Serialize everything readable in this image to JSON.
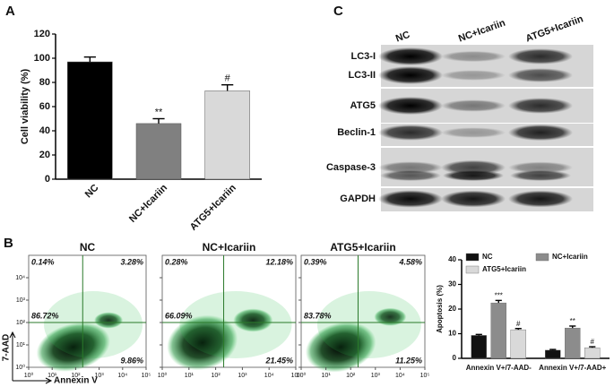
{
  "panel_labels": [
    "A",
    "B",
    "C"
  ],
  "chart_data": [
    {
      "type": "bar",
      "ylabel": "Cell viability (%)",
      "categories": [
        "NC",
        "NC+Icariin",
        "ATG5+Icariin"
      ],
      "values": [
        97,
        46,
        73
      ],
      "errors": [
        4,
        4,
        5
      ],
      "annotations": [
        null,
        "**",
        "#"
      ],
      "colors": [
        "#000000",
        "#808080",
        "#d9d9d9"
      ],
      "ylim": [
        0,
        120
      ],
      "yticks": [
        0,
        20,
        40,
        60,
        80,
        100,
        120
      ]
    },
    {
      "type": "grouped_bar",
      "ylabel": "Apoptosis (%)",
      "categories": [
        "Annexin V+/7-AAD-",
        "Annexin V+/7-AAD+"
      ],
      "series": [
        {
          "name": "NC",
          "color": "#111111",
          "values": [
            9.3,
            3.3
          ],
          "errors": [
            0.4,
            0.3
          ],
          "annotations": [
            null,
            null
          ]
        },
        {
          "name": "NC+Icariin",
          "color": "#8c8c8c",
          "values": [
            22.5,
            12.3
          ],
          "errors": [
            1.0,
            0.8
          ],
          "annotations": [
            "***",
            "**"
          ]
        },
        {
          "name": "ATG5+Icariin",
          "color": "#d9d9d9",
          "values": [
            11.6,
            4.3
          ],
          "errors": [
            0.5,
            0.4
          ],
          "annotations": [
            "#",
            "#"
          ]
        }
      ],
      "ylim": [
        0,
        40
      ],
      "yticks": [
        0,
        10,
        20,
        30,
        40
      ],
      "legend": "top"
    }
  ],
  "flow_cytometry": {
    "xlabel": "Annexin V",
    "ylabel": "7-AAD",
    "log_scale": true,
    "xlim": [
      1,
      100000
    ],
    "ylim": [
      1,
      100000
    ],
    "xticks": [
      {
        "value": 1,
        "label": "10⁰"
      },
      {
        "value": 10,
        "label": "10¹"
      },
      {
        "value": 100,
        "label": "10²"
      },
      {
        "value": 1000,
        "label": "10³"
      },
      {
        "value": 10000,
        "label": "10⁴"
      },
      {
        "value": 100000,
        "label": "10⁵"
      }
    ],
    "yticks": [
      {
        "value": 1,
        "label": "10⁰"
      },
      {
        "value": 10,
        "label": "10¹"
      },
      {
        "value": 100,
        "label": "10²"
      },
      {
        "value": 1000,
        "label": "10³"
      },
      {
        "value": 10000,
        "label": "10⁴"
      }
    ],
    "plots": [
      {
        "title": "NC",
        "upper_left": "0.14%",
        "upper_right": "3.28%",
        "lower_left": "86.72%",
        "lower_right": "9.86%"
      },
      {
        "title": "NC+Icariin",
        "upper_left": "0.28%",
        "upper_right": "12.18%",
        "lower_left": "66.09%",
        "lower_right": "21.45%"
      },
      {
        "title": "ATG5+Icariin",
        "upper_left": "0.39%",
        "upper_right": "4.58%",
        "lower_left": "83.78%",
        "lower_right": "11.25%"
      }
    ]
  },
  "western_blot": {
    "lanes": [
      "NC",
      "NC+Icariin",
      "ATG5+Icariin"
    ],
    "rows": [
      "LC3-I",
      "LC3-II",
      "ATG5",
      "Beclin-1",
      "Caspase-3",
      "GAPDH"
    ]
  }
}
